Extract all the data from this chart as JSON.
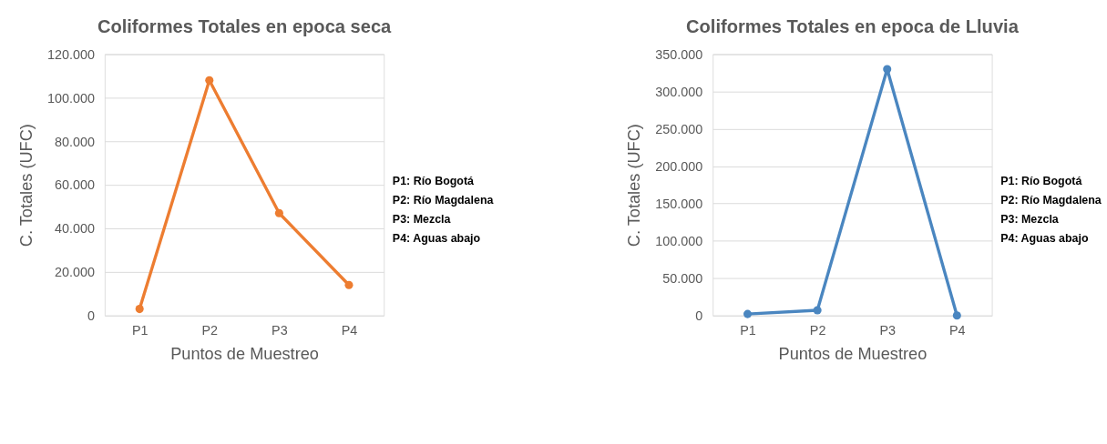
{
  "chart_data": [
    {
      "type": "line",
      "title": "Coliformes Totales en epoca seca",
      "xlabel": "Puntos de Muestreo",
      "ylabel": "C. Totales (UFC)",
      "categories": [
        "P1",
        "P2",
        "P3",
        "P4"
      ],
      "series": [
        {
          "color": "#ed7d31",
          "values": [
            3000,
            108000,
            47000,
            14000
          ]
        }
      ],
      "ylim": [
        0,
        120000
      ],
      "yticks": [
        0,
        {
          "value": 20000,
          "label": "20.000"
        },
        {
          "value": 40000,
          "label": "40.000"
        },
        {
          "value": 60000,
          "label": "60.000"
        },
        {
          "value": 80000,
          "label": "80.000"
        },
        {
          "value": 100000,
          "label": "100.000"
        },
        {
          "value": 120000,
          "label": "120.000"
        }
      ],
      "grid": "y",
      "marker": "circle",
      "line_style": "solid",
      "annotations": [
        "P1: Río Bogotá",
        "P2: Río Magdalena",
        "P3: Mezcla",
        "P4: Aguas abajo"
      ]
    },
    {
      "type": "line",
      "title": "Coliformes Totales en epoca de Lluvia",
      "xlabel": "Puntos de Muestreo",
      "ylabel": "C. Totales (UFC)",
      "categories": [
        "P1",
        "P2",
        "P3",
        "P4"
      ],
      "series": [
        {
          "color": "#4a86c0",
          "values": [
            2000,
            7000,
            330000,
            0
          ]
        }
      ],
      "ylim": [
        0,
        350000
      ],
      "yticks": [
        0,
        {
          "value": 50000,
          "label": "50.000"
        },
        {
          "value": 100000,
          "label": "100.000"
        },
        {
          "value": 150000,
          "label": "150.000"
        },
        {
          "value": 200000,
          "label": "200.000"
        },
        {
          "value": 250000,
          "label": "250.000"
        },
        {
          "value": 300000,
          "label": "300.000"
        },
        {
          "value": 350000,
          "label": "350.000"
        }
      ],
      "grid": "y",
      "marker": "circle",
      "line_style": "solid",
      "annotations": [
        "P1: Río Bogotá",
        "P2: Río Magdalena",
        "P3: Mezcla",
        "P4: Aguas abajo"
      ]
    }
  ]
}
